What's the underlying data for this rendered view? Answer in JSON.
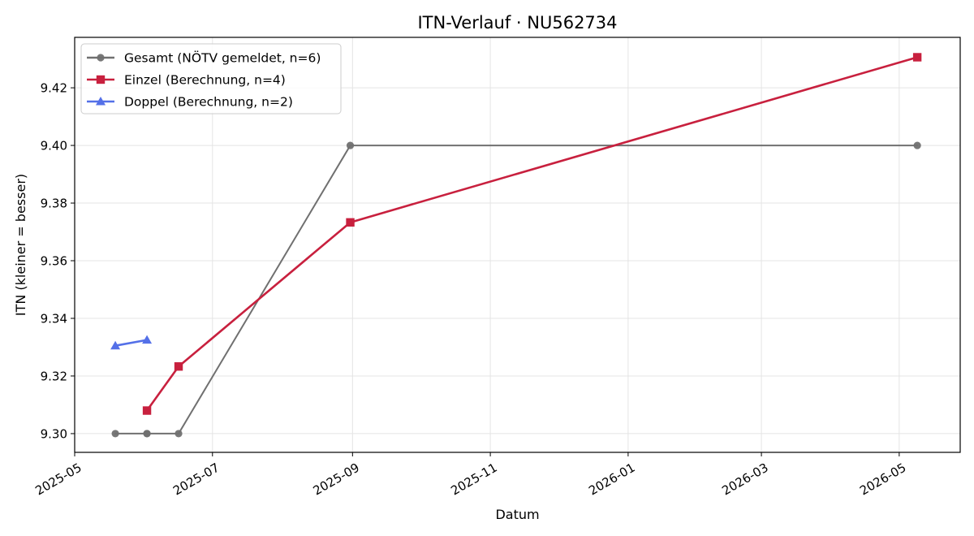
{
  "chart_data": {
    "type": "line",
    "title": "ITN-Verlauf · NU562734",
    "xlabel": "Datum",
    "ylabel": "ITN  (kleiner = besser)",
    "x_type": "date",
    "xlim": [
      "2025-05-01",
      "2026-05-28"
    ],
    "ylim": [
      9.2935,
      9.4375
    ],
    "x_ticks": [
      "2025-05",
      "2025-07",
      "2025-09",
      "2025-11",
      "2026-01",
      "2026-03",
      "2026-05"
    ],
    "y_ticks": [
      "9.30",
      "9.32",
      "9.34",
      "9.36",
      "9.38",
      "9.40",
      "9.42"
    ],
    "grid": true,
    "legend_position": "top-left",
    "series": [
      {
        "name": "Gesamt (NÖTV gemeldet, n=6)",
        "color": "#707070",
        "marker": "circle",
        "points": [
          {
            "x": "2025-05-19",
            "y": 9.3
          },
          {
            "x": "2025-06-02",
            "y": 9.3
          },
          {
            "x": "2025-06-02",
            "y": 9.3
          },
          {
            "x": "2025-06-16",
            "y": 9.3
          },
          {
            "x": "2025-08-31",
            "y": 9.4
          },
          {
            "x": "2026-05-09",
            "y": 9.4
          }
        ]
      },
      {
        "name": "Einzel (Berechnung, n=4)",
        "color": "#c8203e",
        "marker": "square",
        "points": [
          {
            "x": "2025-06-02",
            "y": 9.308
          },
          {
            "x": "2025-06-16",
            "y": 9.3233
          },
          {
            "x": "2025-08-31",
            "y": 9.3733
          },
          {
            "x": "2026-05-09",
            "y": 9.4306
          }
        ]
      },
      {
        "name": "Doppel (Berechnung, n=2)",
        "color": "#5470e8",
        "marker": "triangle",
        "points": [
          {
            "x": "2025-05-19",
            "y": 9.3305
          },
          {
            "x": "2025-06-02",
            "y": 9.3325
          }
        ]
      }
    ]
  }
}
